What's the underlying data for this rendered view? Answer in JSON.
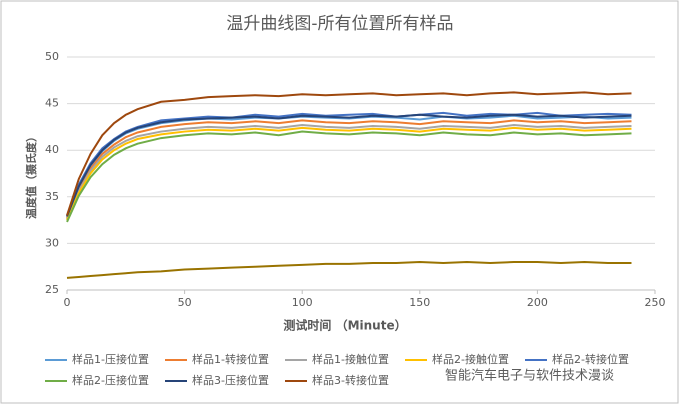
{
  "chart_data": {
    "type": "line",
    "title": "温升曲线图-所有位置所有样品",
    "x_label": "测试时间 （Minute）",
    "y_label": "温度值（摄氏度）",
    "x": [
      0,
      5,
      10,
      15,
      20,
      25,
      30,
      40,
      50,
      60,
      70,
      80,
      90,
      100,
      110,
      120,
      130,
      140,
      150,
      160,
      170,
      180,
      190,
      200,
      210,
      220,
      230,
      240
    ],
    "xlim": [
      0,
      250
    ],
    "xticks": [
      0,
      50,
      100,
      150,
      200,
      250
    ],
    "ylim": [
      25,
      50
    ],
    "yticks": [
      25,
      30,
      35,
      40,
      45,
      50
    ],
    "grid": true,
    "series": [
      {
        "name": "样品1-压接位置",
        "color": "#5b9bd5",
        "values": [
          32.8,
          36.0,
          38.3,
          39.9,
          41.0,
          41.8,
          42.3,
          42.9,
          43.2,
          43.4,
          43.3,
          43.5,
          43.4,
          43.6,
          43.5,
          43.4,
          43.6,
          43.5,
          43.3,
          43.6,
          43.4,
          43.5,
          43.7,
          43.4,
          43.5,
          43.6,
          43.4,
          43.5
        ]
      },
      {
        "name": "样品1-转接位置",
        "color": "#ed7d31",
        "values": [
          32.7,
          35.8,
          38.0,
          39.6,
          40.6,
          41.4,
          41.9,
          42.5,
          42.8,
          43.0,
          42.9,
          43.1,
          42.9,
          43.2,
          43.0,
          42.9,
          43.1,
          43.0,
          42.8,
          43.1,
          43.0,
          42.9,
          43.2,
          43.0,
          43.1,
          42.9,
          43.0,
          43.1
        ]
      },
      {
        "name": "样品1-接触位置",
        "color": "#a5a5a5",
        "values": [
          32.6,
          35.6,
          37.8,
          39.3,
          40.3,
          41.0,
          41.5,
          42.0,
          42.3,
          42.5,
          42.4,
          42.6,
          42.4,
          42.7,
          42.5,
          42.4,
          42.6,
          42.5,
          42.3,
          42.6,
          42.5,
          42.4,
          42.7,
          42.5,
          42.6,
          42.4,
          42.5,
          42.6
        ]
      },
      {
        "name": "样品2-接触位置",
        "color": "#ffc000",
        "values": [
          32.5,
          35.4,
          37.5,
          39.0,
          40.0,
          40.7,
          41.2,
          41.7,
          42.0,
          42.2,
          42.1,
          42.3,
          42.1,
          42.4,
          42.2,
          42.1,
          42.3,
          42.2,
          42.0,
          42.3,
          42.2,
          42.1,
          42.4,
          42.2,
          42.3,
          42.1,
          42.2,
          42.3
        ]
      },
      {
        "name": "样品2-转接位置",
        "color": "#4472c4",
        "values": [
          33.0,
          36.3,
          38.6,
          40.2,
          41.2,
          42.0,
          42.5,
          43.2,
          43.4,
          43.6,
          43.5,
          43.8,
          43.6,
          43.9,
          43.7,
          43.8,
          43.9,
          43.6,
          43.8,
          44.0,
          43.7,
          43.9,
          43.8,
          44.0,
          43.7,
          43.8,
          43.9,
          43.8
        ]
      },
      {
        "name": "样品2-压接位置",
        "color": "#70ad47",
        "values": [
          32.3,
          35.1,
          37.1,
          38.5,
          39.5,
          40.2,
          40.7,
          41.3,
          41.6,
          41.8,
          41.7,
          41.9,
          41.6,
          42.0,
          41.8,
          41.7,
          41.9,
          41.8,
          41.6,
          41.9,
          41.7,
          41.6,
          41.9,
          41.7,
          41.8,
          41.6,
          41.7,
          41.8
        ]
      },
      {
        "name": "样品3-压接位置",
        "color": "#264478",
        "values": [
          32.9,
          36.1,
          38.4,
          40.0,
          41.1,
          41.9,
          42.4,
          43.0,
          43.3,
          43.4,
          43.5,
          43.6,
          43.4,
          43.7,
          43.6,
          43.5,
          43.7,
          43.6,
          43.8,
          43.6,
          43.5,
          43.7,
          43.8,
          43.6,
          43.7,
          43.5,
          43.6,
          43.7
        ]
      },
      {
        "name": "样品3-转接位置",
        "color": "#9e480e",
        "values": [
          33.0,
          36.9,
          39.6,
          41.6,
          42.9,
          43.8,
          44.4,
          45.2,
          45.4,
          45.7,
          45.8,
          45.9,
          45.8,
          46.0,
          45.9,
          46.0,
          46.1,
          45.9,
          46.0,
          46.1,
          45.9,
          46.1,
          46.2,
          46.0,
          46.1,
          46.2,
          46.0,
          46.1
        ]
      },
      {
        "color": "#997300",
        "values": [
          26.3,
          26.4,
          26.5,
          26.6,
          26.7,
          26.8,
          26.9,
          27.0,
          27.2,
          27.3,
          27.4,
          27.5,
          27.6,
          27.7,
          27.8,
          27.8,
          27.9,
          27.9,
          28.0,
          27.9,
          28.0,
          27.9,
          28.0,
          28.0,
          27.9,
          28.0,
          27.9,
          27.9
        ]
      }
    ],
    "watermark": "智能汽车电子与软件技术漫谈"
  }
}
